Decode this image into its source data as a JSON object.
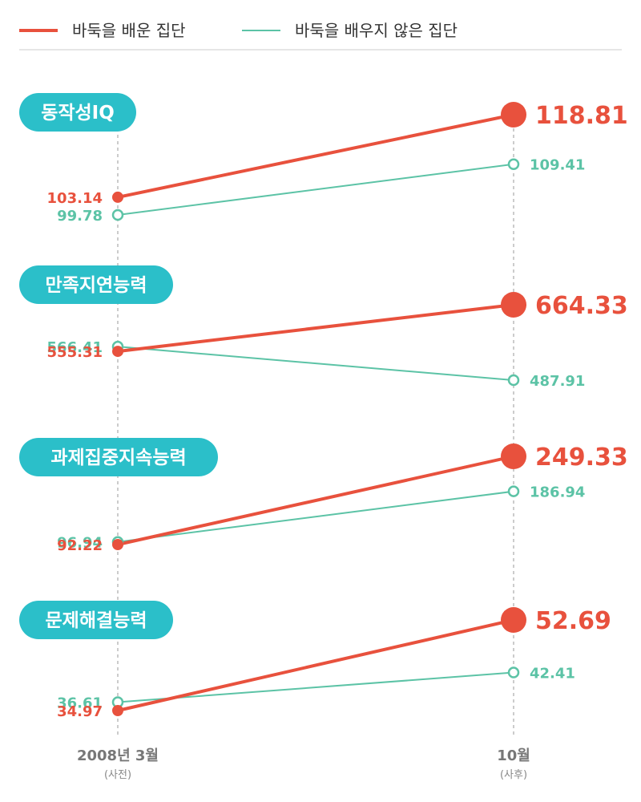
{
  "legend": {
    "learned": "바둑을 배운 집단",
    "not_learned": "바둑을 배우지 않은 집단"
  },
  "colors": {
    "learned": "#e8513d",
    "not_learned": "#5cc3a6",
    "pill": "#2bbfc9",
    "axis": "#999999"
  },
  "axis": {
    "before": {
      "label": "2008년 3월",
      "sub": "(사전)"
    },
    "after": {
      "label": "10월",
      "sub": "(사후)"
    }
  },
  "chart_data": {
    "type": "line",
    "x": [
      "2008년 3월 (사전)",
      "10월 (사후)"
    ],
    "panels": [
      {
        "title": "동작성IQ",
        "series": [
          {
            "name": "바둑을 배운 집단",
            "values": [
              103.14,
              118.81
            ],
            "labels": [
              "103.14",
              "118.81"
            ]
          },
          {
            "name": "바둑을 배우지 않은 집단",
            "values": [
              99.78,
              109.41
            ],
            "labels": [
              "99.78",
              "109.41"
            ]
          }
        ]
      },
      {
        "title": "만족지연능력",
        "series": [
          {
            "name": "바둑을 배운 집단",
            "values": [
              555.31,
              664.33
            ],
            "labels": [
              "555.31",
              "664.33"
            ]
          },
          {
            "name": "바둑을 배우지 않은 집단",
            "values": [
              566.41,
              487.91
            ],
            "labels": [
              "566.41",
              "487.91"
            ]
          }
        ]
      },
      {
        "title": "과제집중지속능력",
        "series": [
          {
            "name": "바둑을 배운 집단",
            "values": [
              92.22,
              249.33
            ],
            "labels": [
              "92.22",
              "249.33"
            ]
          },
          {
            "name": "바둑을 배우지 않은 집단",
            "values": [
              96.94,
              186.94
            ],
            "labels": [
              "96.94",
              "186.94"
            ]
          }
        ]
      },
      {
        "title": "문제해결능력",
        "series": [
          {
            "name": "바둑을 배운 집단",
            "values": [
              34.97,
              52.69
            ],
            "labels": [
              "34.97",
              "52.69"
            ]
          },
          {
            "name": "바둑을 배우지 않은 집단",
            "values": [
              36.61,
              42.41
            ],
            "labels": [
              "36.61",
              "42.41"
            ]
          }
        ]
      }
    ]
  }
}
